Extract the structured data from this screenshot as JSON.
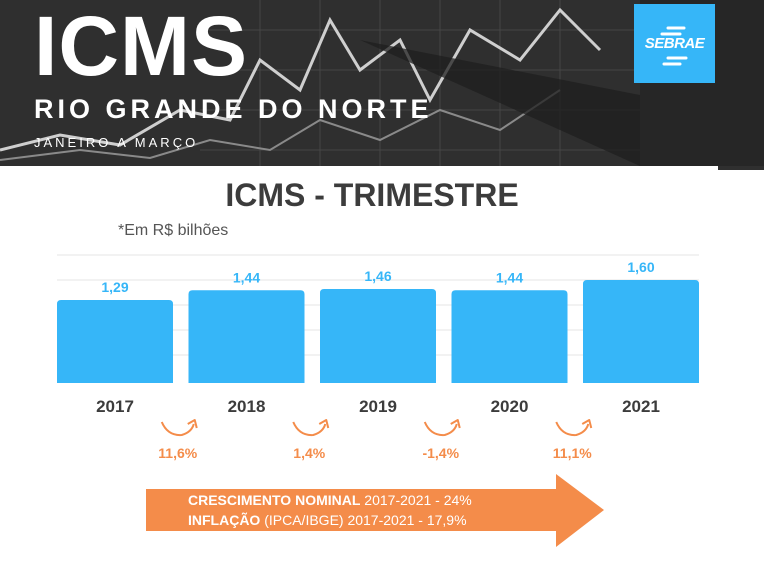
{
  "header": {
    "title": "ICMS",
    "subtitle": "RIO GRANDE DO NORTE",
    "period": "JANEIRO A MARÇO",
    "logo_text": "SEBRAE",
    "background_color": "#2f2f2f",
    "logo_color": "#36b6f8"
  },
  "chart_data": {
    "type": "bar",
    "title": "ICMS - TRIMESTRE",
    "unit_note": "*Em R$ bilhões",
    "categories": [
      "2017",
      "2018",
      "2019",
      "2020",
      "2021"
    ],
    "values": [
      1.29,
      1.44,
      1.46,
      1.44,
      1.6
    ],
    "value_labels": [
      "1,29",
      "1,44",
      "1,46",
      "1,44",
      "1,60"
    ],
    "ylim": [
      0,
      1.6
    ],
    "grid": true,
    "bar_color": "#36b6f8",
    "growth": [
      {
        "from": "2017",
        "to": "2018",
        "label": "11,6%"
      },
      {
        "from": "2018",
        "to": "2019",
        "label": "1,4%"
      },
      {
        "from": "2019",
        "to": "2020",
        "label": "-1,4%"
      },
      {
        "from": "2020",
        "to": "2021",
        "label": "11,1%"
      }
    ],
    "accent_color": "#f48c4a"
  },
  "banner": {
    "line1_bold": "CRESCIMENTO NOMINAL",
    "line1_rest": " 2017-2021 - 24%",
    "line2_bold": "INFLAÇÃO",
    "line2_rest": " (IPCA/IBGE) 2017-2021 - 17,9%",
    "color": "#f48c4a"
  }
}
